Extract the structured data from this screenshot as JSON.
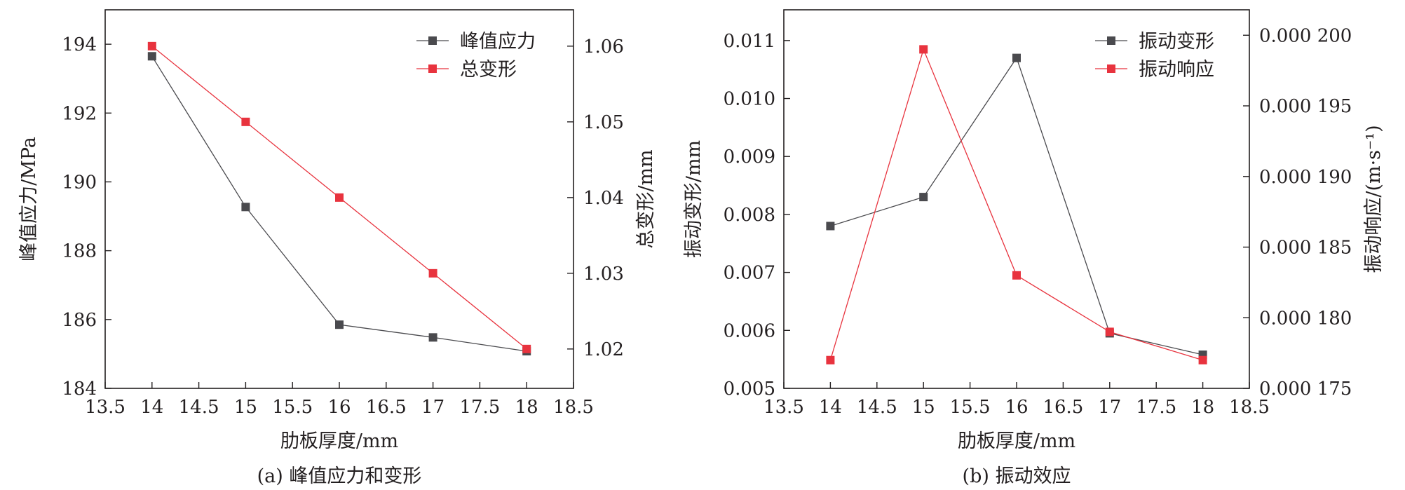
{
  "colors": {
    "gray": "#4a4a4e",
    "red": "#e8333e",
    "axis": "#231f20"
  },
  "chart_data": [
    {
      "type": "line",
      "caption": "(a) 峰值应力和变形",
      "xlabel": "肋板厚度/mm",
      "xlim": [
        13.5,
        18.5
      ],
      "xticks": [
        "13.5",
        "14",
        "14.5",
        "15",
        "15.5",
        "16",
        "16.5",
        "17",
        "17.5",
        "18",
        "18.5"
      ],
      "y_left": {
        "label": "峰值应力/MPa",
        "lim": [
          184,
          195
        ],
        "ticks": [
          "184",
          "186",
          "188",
          "190",
          "192",
          "194"
        ]
      },
      "y_right": {
        "label": "总变形/mm",
        "lim": [
          1.0148,
          1.0648
        ],
        "ticks": [
          "1.02",
          "1.03",
          "1.04",
          "1.05",
          "1.06"
        ]
      },
      "legend_position": "top-right",
      "series": [
        {
          "name": "峰值应力",
          "axis": "left",
          "color": "#4a4a4e",
          "x": [
            14,
            15,
            16,
            17,
            18
          ],
          "y": [
            193.65,
            189.27,
            185.85,
            185.48,
            185.08
          ]
        },
        {
          "name": "总变形",
          "axis": "right",
          "color": "#e8333e",
          "x": [
            14,
            15,
            16,
            17,
            18
          ],
          "y": [
            1.06,
            1.05,
            1.04,
            1.03,
            1.02
          ]
        }
      ]
    },
    {
      "type": "line",
      "caption": "(b) 振动效应",
      "xlabel": "肋板厚度/mm",
      "xlim": [
        13.5,
        18.5
      ],
      "xticks": [
        "13.5",
        "14",
        "14.5",
        "15",
        "15.5",
        "16",
        "16.5",
        "17",
        "17.5",
        "18",
        "18.5"
      ],
      "y_left": {
        "label": "振动变形/mm",
        "lim": [
          0.005,
          0.01153
        ],
        "ticks": [
          "0.005",
          "0.006",
          "0.007",
          "0.008",
          "0.009",
          "0.010",
          "0.011"
        ]
      },
      "y_right": {
        "label": "振动响应/(m·s⁻¹)",
        "lim": [
          0.000175,
          0.0002018
        ],
        "ticks": [
          "0.000 175",
          "0.000 180",
          "0.000 185",
          "0.000 190",
          "0.000 195",
          "0.000 200"
        ]
      },
      "legend_position": "top-right",
      "series": [
        {
          "name": "振动变形",
          "axis": "left",
          "color": "#4a4a4e",
          "x": [
            14,
            15,
            16,
            17,
            18
          ],
          "y": [
            0.0078,
            0.0083,
            0.0107,
            0.00595,
            0.00558
          ]
        },
        {
          "name": "振动响应",
          "axis": "right",
          "color": "#e8333e",
          "x": [
            14,
            15,
            16,
            17,
            18
          ],
          "y": [
            0.000177,
            0.000199,
            0.000183,
            0.000179,
            0.000177
          ]
        }
      ]
    }
  ]
}
